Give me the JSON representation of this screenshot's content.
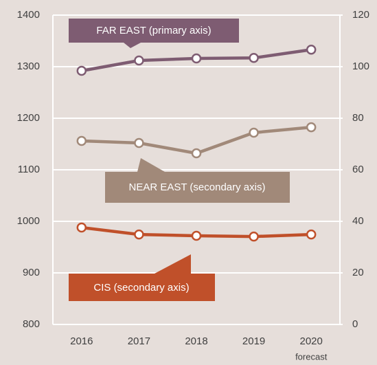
{
  "chart_data": {
    "type": "line",
    "categories": [
      "2016",
      "2017",
      "2018",
      "2019",
      "2020"
    ],
    "annotations": [
      "forecast"
    ],
    "series": [
      {
        "name": "FAR EAST (primary axis)",
        "color": "#7e5c72",
        "values": [
          1292,
          1312,
          1316,
          1317,
          1333
        ]
      },
      {
        "name": "NEAR EAST (secondary axis)",
        "color": "#a18979",
        "axis": "y2",
        "values": [
          71.2,
          70.4,
          66.4,
          74.4,
          76.5
        ]
      },
      {
        "name": "CIS (secondary axis)",
        "color": "#c0502a",
        "axis": "y2",
        "values": [
          37.6,
          34.9,
          34.4,
          34.1,
          34.9
        ]
      }
    ],
    "ylim": [
      800,
      1400
    ],
    "yticks": [
      800,
      900,
      1000,
      1100,
      1200,
      1300,
      1400
    ],
    "y2lim": [
      0,
      120
    ],
    "y2ticks": [
      0,
      20,
      40,
      60,
      80,
      100,
      120
    ],
    "grid": true
  }
}
